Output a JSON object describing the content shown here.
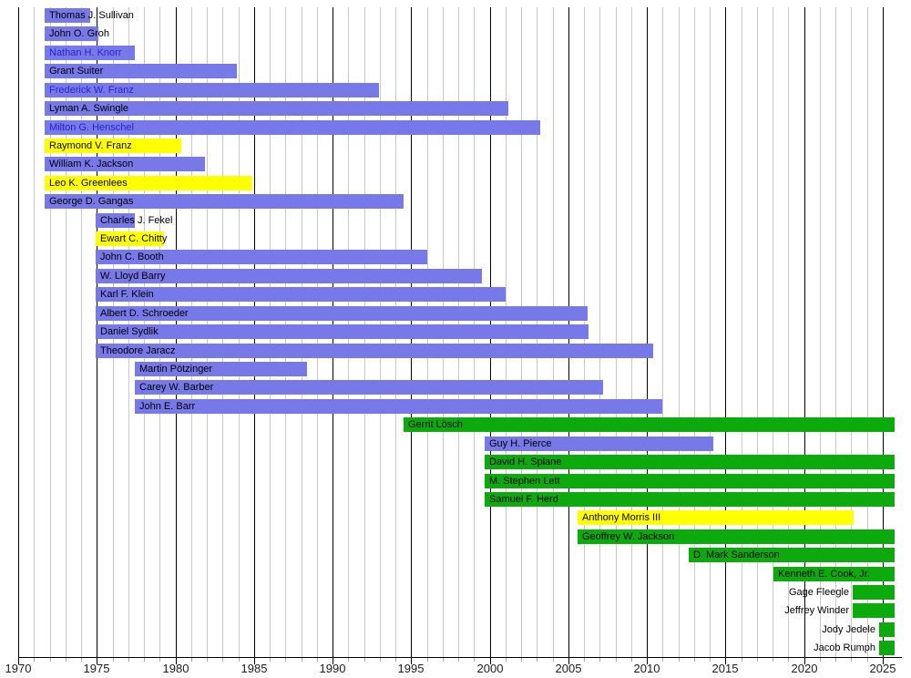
{
  "chart_data": {
    "type": "gantt",
    "title": "",
    "x_axis": {
      "min": 1970,
      "max": 2025,
      "major_tick_interval": 5,
      "minor_tick_interval": 1,
      "tick_labels": [
        "1970",
        "1975",
        "1980",
        "1985",
        "1990",
        "1995",
        "2000",
        "2005",
        "2010",
        "2015",
        "2020",
        "2025"
      ]
    },
    "palette": {
      "purple": "#7879e8",
      "yellow": "#ffff00",
      "green": "#0caa0c",
      "link_text": "#2525cd",
      "text": "#000000",
      "grid_minor": "#c9c9c9",
      "grid_major": "#000000",
      "axis": "#000000",
      "tick_minor": "#aaaaaa"
    },
    "members": [
      {
        "name": "Thomas J. Sullivan",
        "start": 1971.7,
        "end": 1974.6,
        "color": "purple",
        "link": false,
        "label_outside": false
      },
      {
        "name": "John O. Groh",
        "start": 1971.7,
        "end": 1975.1,
        "color": "purple",
        "link": false,
        "label_outside": false
      },
      {
        "name": "Nathan H. Knorr",
        "start": 1971.7,
        "end": 1977.4,
        "color": "purple",
        "link": true,
        "label_outside": false
      },
      {
        "name": "Grant Suiter",
        "start": 1971.7,
        "end": 1983.9,
        "color": "purple",
        "link": false,
        "label_outside": false
      },
      {
        "name": "Frederick W. Franz",
        "start": 1971.7,
        "end": 1992.95,
        "color": "purple",
        "link": true,
        "label_outside": false
      },
      {
        "name": "Lyman A. Swingle",
        "start": 1971.7,
        "end": 2001.2,
        "color": "purple",
        "link": false,
        "label_outside": false
      },
      {
        "name": "Milton G. Henschel",
        "start": 1971.7,
        "end": 2003.2,
        "color": "purple",
        "link": true,
        "label_outside": false
      },
      {
        "name": "Raymond V. Franz",
        "start": 1971.7,
        "end": 1980.4,
        "color": "yellow",
        "link": false,
        "label_outside": false
      },
      {
        "name": "William K. Jackson",
        "start": 1971.7,
        "end": 1981.9,
        "color": "purple",
        "link": false,
        "label_outside": false
      },
      {
        "name": "Leo K. Greenlees",
        "start": 1971.7,
        "end": 1984.9,
        "color": "yellow",
        "link": false,
        "label_outside": false
      },
      {
        "name": "George D. Gangas",
        "start": 1971.7,
        "end": 1994.5,
        "color": "purple",
        "link": false,
        "label_outside": false
      },
      {
        "name": "Charles J. Fekel",
        "start": 1974.9,
        "end": 1977.4,
        "color": "purple",
        "link": false,
        "label_outside": false
      },
      {
        "name": "Ewart C. Chitty",
        "start": 1974.9,
        "end": 1979.3,
        "color": "yellow",
        "link": false,
        "label_outside": false
      },
      {
        "name": "John C. Booth",
        "start": 1974.9,
        "end": 1996.0,
        "color": "purple",
        "link": false,
        "label_outside": false
      },
      {
        "name": "W. Lloyd Barry",
        "start": 1974.9,
        "end": 1999.5,
        "color": "purple",
        "link": false,
        "label_outside": false
      },
      {
        "name": "Karl F. Klein",
        "start": 1974.9,
        "end": 2001.0,
        "color": "purple",
        "link": false,
        "label_outside": false
      },
      {
        "name": "Albert D. Schroeder",
        "start": 1974.9,
        "end": 2006.2,
        "color": "purple",
        "link": false,
        "label_outside": false
      },
      {
        "name": "Daniel Sydlik",
        "start": 1974.9,
        "end": 2006.3,
        "color": "purple",
        "link": false,
        "label_outside": false
      },
      {
        "name": "Theodore Jaracz",
        "start": 1974.9,
        "end": 2010.4,
        "color": "purple",
        "link": false,
        "label_outside": false
      },
      {
        "name": "Martin Pötzinger",
        "start": 1977.4,
        "end": 1988.4,
        "color": "purple",
        "link": false,
        "label_outside": false
      },
      {
        "name": "Carey W. Barber",
        "start": 1977.4,
        "end": 2007.2,
        "color": "purple",
        "link": false,
        "label_outside": false
      },
      {
        "name": "John E. Barr",
        "start": 1977.4,
        "end": 2011.0,
        "color": "purple",
        "link": false,
        "label_outside": false
      },
      {
        "name": "Gerrit Lösch",
        "start": 1994.5,
        "end": 2025.75,
        "color": "green",
        "link": false,
        "label_outside": false
      },
      {
        "name": "Guy H. Pierce",
        "start": 1999.7,
        "end": 2014.2,
        "color": "purple",
        "link": false,
        "label_outside": false
      },
      {
        "name": "David H. Splane",
        "start": 1999.7,
        "end": 2025.75,
        "color": "green",
        "link": false,
        "label_outside": false
      },
      {
        "name": "M. Stephen Lett",
        "start": 1999.7,
        "end": 2025.75,
        "color": "green",
        "link": false,
        "label_outside": false
      },
      {
        "name": "Samuel F. Herd",
        "start": 1999.7,
        "end": 2025.75,
        "color": "green",
        "link": false,
        "label_outside": false
      },
      {
        "name": "Anthony Morris III",
        "start": 2005.6,
        "end": 2023.15,
        "color": "yellow",
        "link": false,
        "label_outside": false
      },
      {
        "name": "Geoffrey W. Jackson",
        "start": 2005.6,
        "end": 2025.75,
        "color": "green",
        "link": false,
        "label_outside": false
      },
      {
        "name": "D. Mark Sanderson",
        "start": 2012.65,
        "end": 2025.75,
        "color": "green",
        "link": false,
        "label_outside": false
      },
      {
        "name": "Kenneth E. Cook, Jr.",
        "start": 2018.05,
        "end": 2025.75,
        "color": "green",
        "link": false,
        "label_outside": false
      },
      {
        "name": "Gage Fleegle",
        "start": 2023.1,
        "end": 2025.75,
        "color": "green",
        "link": false,
        "label_outside": true
      },
      {
        "name": "Jeffrey Winder",
        "start": 2023.1,
        "end": 2025.75,
        "color": "green",
        "link": false,
        "label_outside": true
      },
      {
        "name": "Jody Jedele",
        "start": 2024.77,
        "end": 2025.75,
        "color": "green",
        "link": false,
        "label_outside": true
      },
      {
        "name": "Jacob Rumph",
        "start": 2024.77,
        "end": 2025.75,
        "color": "green",
        "link": false,
        "label_outside": true
      }
    ]
  }
}
